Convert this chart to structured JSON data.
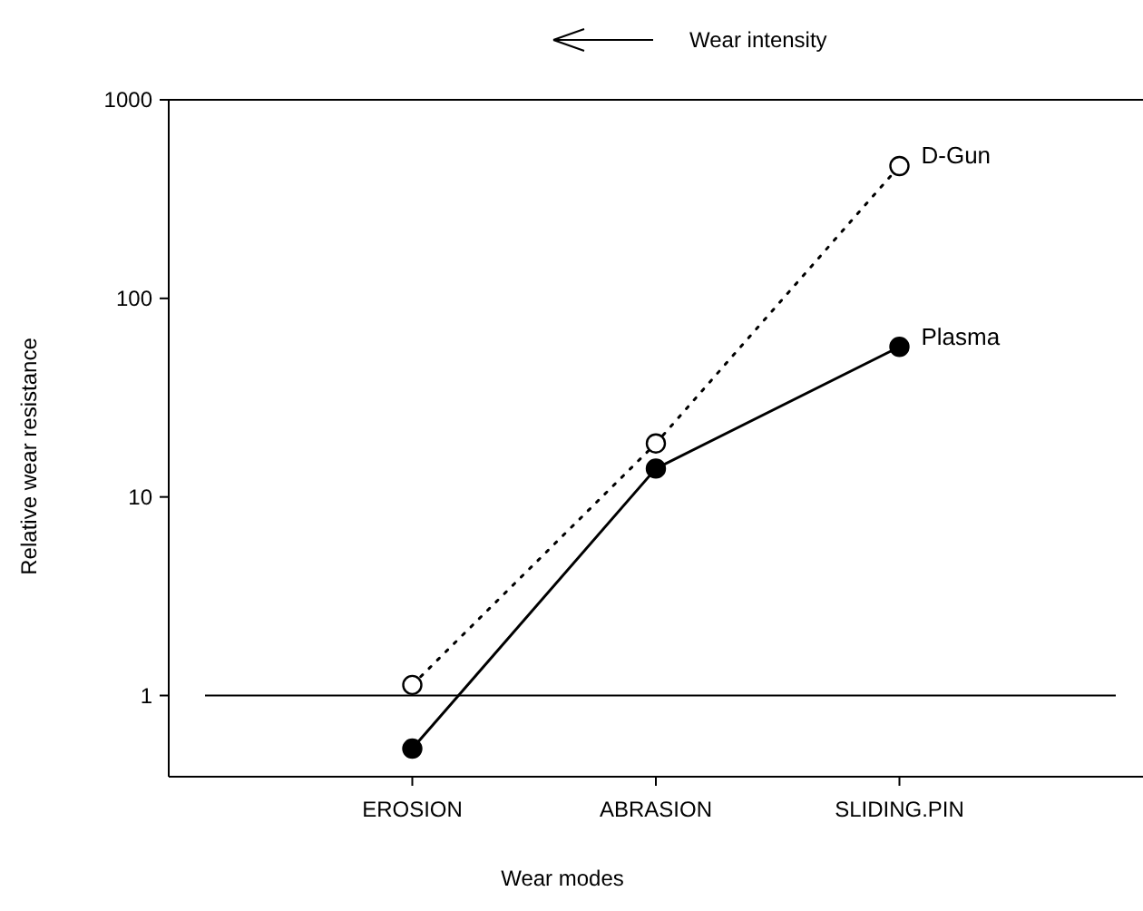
{
  "chart_data": {
    "type": "line",
    "xlabel": "Wear modes",
    "ylabel": "Relative wear resistance",
    "categories": [
      "EROSION",
      "ABRASION",
      "SLIDING.PIN"
    ],
    "series": [
      {
        "name": "D-Gun",
        "color": "#000000",
        "values": [
          1.13,
          18.6,
          464
        ],
        "line_style": "dotted"
      },
      {
        "name": "Plasma",
        "color": "#000000",
        "values": [
          0.54,
          13.9,
          57
        ],
        "line_style": "solid"
      }
    ],
    "log": true,
    "ylim": [
      0.39,
      1000
    ],
    "yticks": [
      1,
      10,
      100,
      1000
    ],
    "marker": "circle",
    "grid": false,
    "ref_lines": [
      {
        "axis": "y",
        "value": 1,
        "color": "#000000"
      }
    ],
    "annotations": [
      "Wear intensity"
    ]
  }
}
